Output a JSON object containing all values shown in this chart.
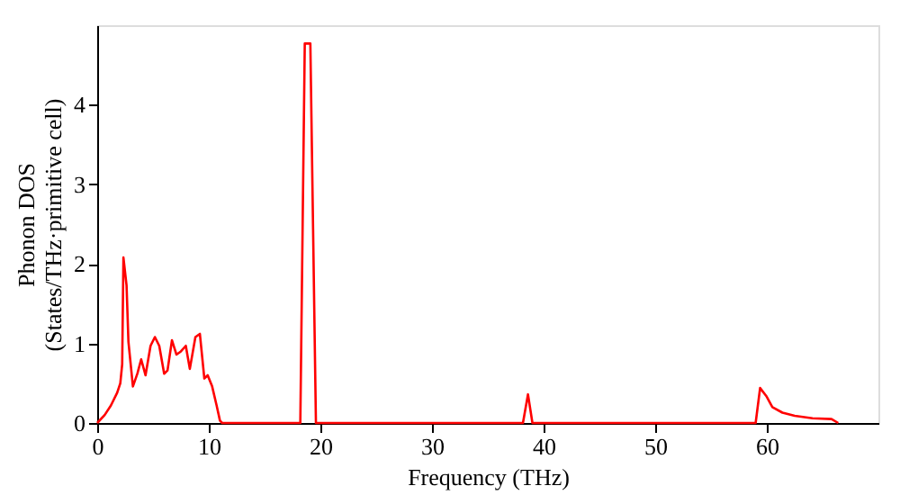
{
  "chart_data": {
    "type": "line",
    "xlabel": "Frequency (THz)",
    "ylabel": "Phonon DOS\n(States/THz·primitive cell)",
    "xlim": [
      0,
      70
    ],
    "ylim": [
      0,
      5
    ],
    "xticks": [
      0,
      10,
      20,
      30,
      40,
      50,
      60
    ],
    "yticks": [
      0,
      1,
      2,
      3,
      4
    ],
    "grid": false,
    "marker": "none",
    "line_style": "solid",
    "series": [
      {
        "color": "#ff0000",
        "x": [
          0,
          0.67,
          1.23,
          1.79,
          2.07,
          2.24,
          2.35,
          2.63,
          2.8,
          3.2,
          3.6,
          3.94,
          4.33,
          4.78,
          5.17,
          5.56,
          6.0,
          6.3,
          6.7,
          7.1,
          7.5,
          7.94,
          8.3,
          8.8,
          9.2,
          9.6,
          9.9,
          10.3,
          10.7,
          11.0,
          11.2,
          18.2,
          18.6,
          19.1,
          19.6,
          38.15,
          38.6,
          39.0,
          59.0,
          59.4,
          59.95,
          60.5,
          61.4,
          62.5,
          64.1,
          65.8,
          66.4
        ],
        "values": [
          0,
          0.1,
          0.22,
          0.38,
          0.5,
          0.74,
          2.08,
          1.73,
          1.02,
          0.46,
          0.62,
          0.8,
          0.6,
          0.97,
          1.08,
          0.97,
          0.62,
          0.66,
          1.04,
          0.86,
          0.9,
          0.97,
          0.68,
          1.08,
          1.12,
          0.56,
          0.6,
          0.46,
          0.22,
          0.03,
          0,
          0,
          4.77,
          4.77,
          0,
          0,
          0.36,
          0,
          0,
          0.44,
          0.34,
          0.2,
          0.13,
          0.09,
          0.06,
          0.05,
          0
        ]
      }
    ]
  }
}
